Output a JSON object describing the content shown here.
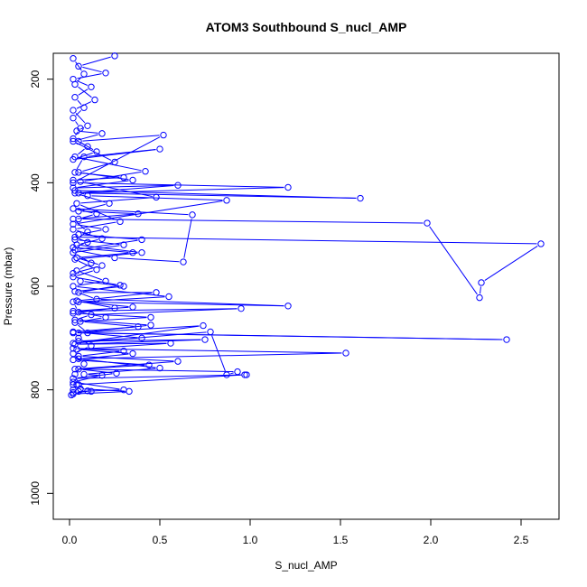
{
  "chart_data": {
    "type": "line",
    "title": "ATOM3 Southbound S_nucl_AMP",
    "xlabel": "S_nucl_AMP",
    "ylabel": "Pressure (mbar)",
    "xlim": [
      -0.09,
      2.71
    ],
    "ylim": [
      1050,
      150
    ],
    "y_reversed": true,
    "grid": false,
    "x_ticks": [
      {
        "value": 0.0,
        "label": "0.0"
      },
      {
        "value": 0.5,
        "label": "0.5"
      },
      {
        "value": 1.0,
        "label": "1.0"
      },
      {
        "value": 1.5,
        "label": "1.5"
      },
      {
        "value": 2.0,
        "label": "2.0"
      },
      {
        "value": 2.5,
        "label": "2.5"
      }
    ],
    "y_ticks": [
      {
        "value": 200,
        "label": "200"
      },
      {
        "value": 400,
        "label": "400"
      },
      {
        "value": 600,
        "label": "600"
      },
      {
        "value": 800,
        "label": "800"
      },
      {
        "value": 1000,
        "label": "1000"
      }
    ],
    "series": [
      {
        "color": "#0000ff",
        "marker": "open-circle",
        "points": [
          [
            0.01,
            810
          ],
          [
            0.02,
            800
          ],
          [
            0.05,
            790
          ],
          [
            0.03,
            770
          ],
          [
            0.08,
            750
          ],
          [
            0.02,
            730
          ],
          [
            0.12,
            715
          ],
          [
            0.05,
            700
          ],
          [
            0.02,
            690
          ],
          [
            2.42,
            703
          ],
          [
            0.1,
            690
          ],
          [
            0.03,
            670
          ],
          [
            0.2,
            660
          ],
          [
            0.05,
            650
          ],
          [
            0.02,
            630
          ],
          [
            1.21,
            638
          ],
          [
            0.15,
            625
          ],
          [
            0.03,
            610
          ],
          [
            0.3,
            600
          ],
          [
            0.06,
            590
          ],
          [
            0.02,
            575
          ],
          [
            0.18,
            560
          ],
          [
            0.04,
            545
          ],
          [
            0.35,
            535
          ],
          [
            0.02,
            525
          ],
          [
            0.1,
            515
          ],
          [
            0.03,
            505
          ],
          [
            2.61,
            518
          ],
          [
            2.28,
            593
          ],
          [
            2.27,
            622
          ],
          [
            1.98,
            478
          ],
          [
            0.05,
            470
          ],
          [
            0.15,
            460
          ],
          [
            0.02,
            450
          ],
          [
            0.68,
            462
          ],
          [
            0.63,
            553
          ],
          [
            0.25,
            545
          ],
          [
            0.03,
            530
          ],
          [
            0.4,
            510
          ],
          [
            0.05,
            500
          ],
          [
            0.2,
            490
          ],
          [
            0.02,
            480
          ],
          [
            0.87,
            434
          ],
          [
            0.1,
            425
          ],
          [
            0.03,
            415
          ],
          [
            1.61,
            430
          ],
          [
            0.05,
            420
          ],
          [
            1.21,
            409
          ],
          [
            0.02,
            400
          ],
          [
            0.52,
            308
          ],
          [
            0.05,
            320
          ],
          [
            0.15,
            340
          ],
          [
            0.02,
            355
          ],
          [
            0.5,
            335
          ],
          [
            0.08,
            350
          ],
          [
            0.03,
            380
          ],
          [
            0.3,
            390
          ],
          [
            0.02,
            395
          ]
        ]
      },
      {
        "color": "#0000ff",
        "marker": "open-circle",
        "points": [
          [
            0.02,
            160
          ],
          [
            0.08,
            190
          ],
          [
            0.03,
            210
          ],
          [
            0.14,
            240
          ],
          [
            0.02,
            260
          ],
          [
            0.1,
            290
          ],
          [
            0.04,
            300
          ],
          [
            0.18,
            305
          ],
          [
            0.02,
            320
          ],
          [
            0.25,
            360
          ],
          [
            0.05,
            380
          ],
          [
            0.35,
            395
          ],
          [
            0.02,
            410
          ],
          [
            0.6,
            405
          ],
          [
            0.03,
            420
          ],
          [
            0.22,
            440
          ],
          [
            0.05,
            455
          ],
          [
            0.38,
            460
          ],
          [
            0.02,
            470
          ],
          [
            0.1,
            495
          ],
          [
            0.03,
            510
          ],
          [
            0.3,
            520
          ],
          [
            0.02,
            535
          ],
          [
            0.12,
            555
          ],
          [
            0.04,
            570
          ],
          [
            0.2,
            590
          ],
          [
            0.02,
            600
          ],
          [
            0.55,
            620
          ],
          [
            0.05,
            630
          ],
          [
            0.35,
            640
          ],
          [
            0.02,
            648
          ],
          [
            0.95,
            643
          ],
          [
            0.12,
            655
          ],
          [
            0.03,
            665
          ],
          [
            0.45,
            675
          ],
          [
            0.05,
            690
          ],
          [
            0.74,
            676
          ],
          [
            0.02,
            710
          ],
          [
            0.78,
            688
          ],
          [
            0.87,
            771
          ],
          [
            0.93,
            765
          ],
          [
            0.03,
            760
          ],
          [
            0.6,
            745
          ],
          [
            0.05,
            735
          ],
          [
            0.3,
            725
          ],
          [
            0.02,
            720
          ],
          [
            1.53,
            729
          ],
          [
            0.05,
            740
          ],
          [
            0.5,
            758
          ],
          [
            0.08,
            770
          ],
          [
            0.18,
            772
          ],
          [
            0.02,
            785
          ],
          [
            0.3,
            800
          ],
          [
            0.05,
            803
          ],
          [
            0.12,
            803
          ],
          [
            0.02,
            805
          ]
        ]
      },
      {
        "color": "#0000ff",
        "marker": "open-circle",
        "points": [
          [
            0.25,
            155
          ],
          [
            0.05,
            175
          ],
          [
            0.2,
            188
          ],
          [
            0.02,
            200
          ],
          [
            0.12,
            215
          ],
          [
            0.03,
            235
          ],
          [
            0.08,
            255
          ],
          [
            0.02,
            275
          ],
          [
            0.06,
            295
          ],
          [
            0.02,
            315
          ],
          [
            0.1,
            330
          ],
          [
            0.03,
            350
          ],
          [
            0.42,
            378
          ],
          [
            0.06,
            398
          ],
          [
            0.48,
            428
          ],
          [
            0.04,
            440
          ],
          [
            0.28,
            475
          ],
          [
            0.02,
            490
          ],
          [
            0.18,
            508
          ],
          [
            0.04,
            520
          ],
          [
            0.4,
            535
          ],
          [
            0.03,
            548
          ],
          [
            0.15,
            568
          ],
          [
            0.02,
            582
          ],
          [
            0.28,
            598
          ],
          [
            0.05,
            612
          ],
          [
            0.48,
            612
          ],
          [
            0.04,
            628
          ],
          [
            0.25,
            642
          ],
          [
            0.02,
            652
          ],
          [
            0.45,
            660
          ],
          [
            0.06,
            668
          ],
          [
            0.38,
            678
          ],
          [
            0.02,
            688
          ],
          [
            0.4,
            700
          ],
          [
            0.05,
            706
          ],
          [
            0.75,
            703
          ],
          [
            0.03,
            712
          ],
          [
            0.56,
            710
          ],
          [
            0.04,
            722
          ],
          [
            0.35,
            730
          ],
          [
            0.02,
            742
          ],
          [
            0.44,
            752
          ],
          [
            0.05,
            760
          ],
          [
            0.26,
            768
          ],
          [
            0.02,
            778
          ],
          [
            0.98,
            771
          ],
          [
            0.97,
            771
          ],
          [
            0.04,
            790
          ],
          [
            0.1,
            802
          ],
          [
            0.02,
            808
          ],
          [
            0.33,
            803
          ],
          [
            0.06,
            798
          ],
          [
            0.02,
            790
          ]
        ]
      }
    ]
  }
}
